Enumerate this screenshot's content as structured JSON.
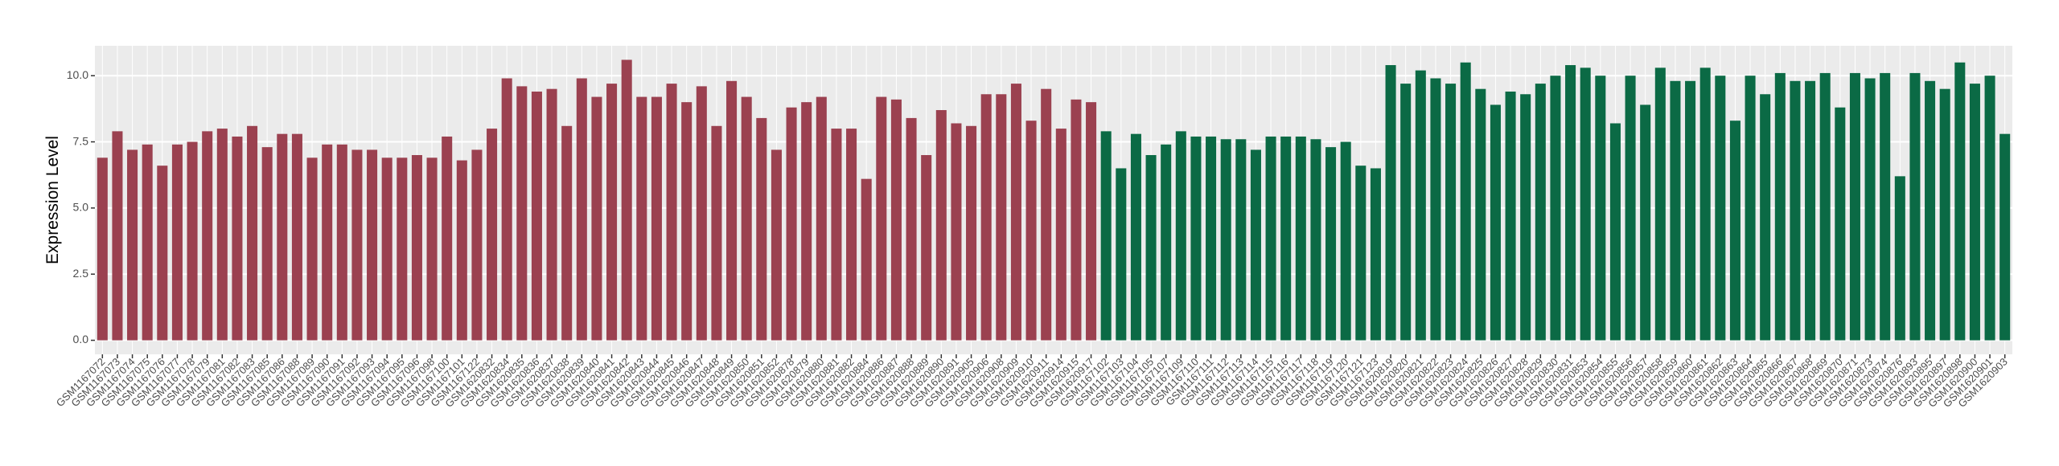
{
  "chart_data": {
    "type": "bar",
    "y_label": "Expression Level",
    "categories": [
      "GSM1167072",
      "GSM1167073",
      "GSM1167074",
      "GSM1167075",
      "GSM1167076",
      "GSM1167077",
      "GSM1167078",
      "GSM1167079",
      "GSM1167081",
      "GSM1167082",
      "GSM1167083",
      "GSM1167085",
      "GSM1167086",
      "GSM1167088",
      "GSM1167089",
      "GSM1167090",
      "GSM1167091",
      "GSM1167092",
      "GSM1167093",
      "GSM1167094",
      "GSM1167095",
      "GSM1167096",
      "GSM1167098",
      "GSM1167100",
      "GSM1167101",
      "GSM1167122",
      "GSM1620832",
      "GSM1620834",
      "GSM1620835",
      "GSM1620836",
      "GSM1620837",
      "GSM1620838",
      "GSM1620839",
      "GSM1620840",
      "GSM1620841",
      "GSM1620842",
      "GSM1620843",
      "GSM1620844",
      "GSM1620845",
      "GSM1620846",
      "GSM1620847",
      "GSM1620848",
      "GSM1620849",
      "GSM1620850",
      "GSM1620851",
      "GSM1620852",
      "GSM1620878",
      "GSM1620879",
      "GSM1620880",
      "GSM1620881",
      "GSM1620882",
      "GSM1620884",
      "GSM1620886",
      "GSM1620887",
      "GSM1620888",
      "GSM1620889",
      "GSM1620890",
      "GSM1620891",
      "GSM1620905",
      "GSM1620906",
      "GSM1620908",
      "GSM1620909",
      "GSM1620910",
      "GSM1620911",
      "GSM1620914",
      "GSM1620915",
      "GSM1620917",
      "GSM1167102",
      "GSM1167103",
      "GSM1167104",
      "GSM1167105",
      "GSM1167107",
      "GSM1167109",
      "GSM1167110",
      "GSM1167111",
      "GSM1167112",
      "GSM1167113",
      "GSM1167114",
      "GSM1167115",
      "GSM1167116",
      "GSM1167117",
      "GSM1167118",
      "GSM1167119",
      "GSM1167120",
      "GSM1167121",
      "GSM1167123",
      "GSM1620819",
      "GSM1620820",
      "GSM1620821",
      "GSM1620822",
      "GSM1620823",
      "GSM1620824",
      "GSM1620825",
      "GSM1620826",
      "GSM1620827",
      "GSM1620828",
      "GSM1620829",
      "GSM1620830",
      "GSM1620831",
      "GSM1620853",
      "GSM1620854",
      "GSM1620855",
      "GSM1620856",
      "GSM1620857",
      "GSM1620858",
      "GSM1620859",
      "GSM1620860",
      "GSM1620861",
      "GSM1620862",
      "GSM1620863",
      "GSM1620864",
      "GSM1620865",
      "GSM1620866",
      "GSM1620867",
      "GSM1620868",
      "GSM1620869",
      "GSM1620870",
      "GSM1620871",
      "GSM1620873",
      "GSM1620874",
      "GSM1620876",
      "GSM1620893",
      "GSM1620895",
      "GSM1620897",
      "GSM1620898",
      "GSM1620900",
      "GSM1620901",
      "GSM1620903"
    ],
    "series": [
      {
        "color": "#9b4150",
        "values": [
          6.9,
          7.9,
          7.2,
          7.4,
          6.6,
          7.4,
          7.5,
          7.9,
          8.0,
          7.7,
          8.1,
          7.3,
          7.8,
          7.8,
          6.9,
          7.4,
          7.4,
          7.2,
          7.2,
          6.9,
          6.9,
          7.0,
          6.9,
          7.7,
          6.8,
          7.2,
          8.0,
          9.9,
          9.6,
          9.4,
          9.5,
          8.1,
          9.9,
          9.2,
          9.7,
          10.6,
          9.2,
          9.2,
          9.7,
          9.0,
          9.6,
          8.1,
          9.8,
          9.2,
          8.4,
          7.2,
          8.8,
          9.0,
          9.2,
          8.0,
          8.0,
          6.1,
          9.2,
          9.1,
          8.4,
          7.0,
          8.7,
          8.2,
          8.1,
          9.3,
          9.3,
          9.7,
          8.3,
          9.5,
          8.0,
          9.1,
          9.0,
          null,
          null,
          null,
          null,
          null,
          null,
          null,
          null,
          null,
          null,
          null,
          null,
          null,
          null,
          null,
          null,
          null,
          null,
          null,
          null,
          null,
          null,
          null,
          null,
          null,
          null,
          null,
          null,
          null,
          null,
          null,
          null,
          null,
          null,
          null,
          null,
          null,
          null,
          null,
          null,
          null,
          null,
          null,
          null,
          null,
          null,
          null,
          null,
          null,
          null,
          null,
          null,
          null,
          null,
          null,
          null,
          null,
          null,
          null,
          null,
          null
        ]
      },
      {
        "color": "#0b6a45",
        "values": [
          null,
          null,
          null,
          null,
          null,
          null,
          null,
          null,
          null,
          null,
          null,
          null,
          null,
          null,
          null,
          null,
          null,
          null,
          null,
          null,
          null,
          null,
          null,
          null,
          null,
          null,
          null,
          null,
          null,
          null,
          null,
          null,
          null,
          null,
          null,
          null,
          null,
          null,
          null,
          null,
          null,
          null,
          null,
          null,
          null,
          null,
          null,
          null,
          null,
          null,
          null,
          null,
          null,
          null,
          null,
          null,
          null,
          null,
          null,
          null,
          null,
          null,
          null,
          null,
          null,
          null,
          null,
          7.9,
          6.5,
          7.8,
          7.0,
          7.4,
          7.9,
          7.7,
          7.7,
          7.6,
          7.6,
          7.2,
          7.7,
          7.7,
          7.7,
          7.6,
          7.3,
          7.5,
          6.6,
          6.5,
          10.4,
          9.7,
          10.2,
          9.9,
          9.7,
          10.5,
          9.5,
          8.9,
          9.4,
          9.3,
          9.7,
          10.0,
          10.4,
          10.3,
          10.0,
          8.2,
          10.0,
          8.9,
          10.3,
          9.8,
          9.8,
          10.3,
          10.0,
          8.3,
          10.0,
          9.3,
          10.1,
          9.8,
          9.8,
          10.1,
          8.8,
          10.1,
          9.9,
          10.1,
          6.2,
          10.1,
          9.8,
          9.5,
          10.5,
          9.7,
          10.0,
          7.8
        ]
      }
    ],
    "ylim": [
      -0.53,
      11.13
    ],
    "yticks": [
      {
        "value": 0,
        "label": "0.0"
      },
      {
        "value": 2.5,
        "label": "2.5"
      },
      {
        "value": 5,
        "label": "5.0"
      },
      {
        "value": 7.5,
        "label": "7.5"
      },
      {
        "value": 10,
        "label": "10.0"
      }
    ],
    "grid": true,
    "plot_background": "#ebebeb"
  }
}
